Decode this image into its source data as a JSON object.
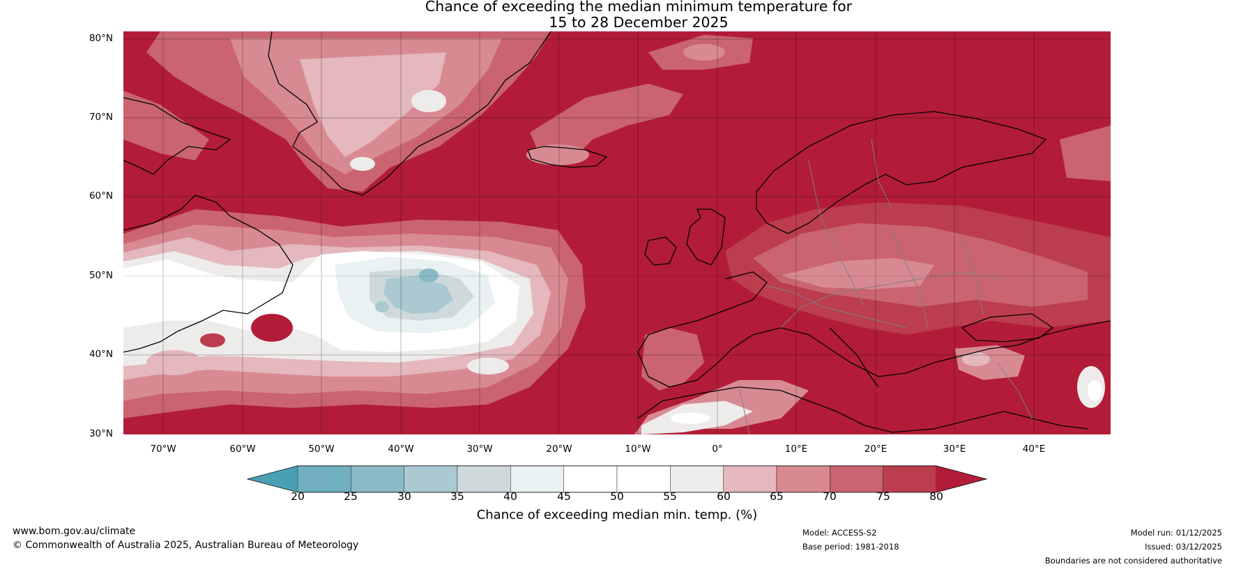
{
  "title": {
    "line1": "Chance of exceeding the median minimum temperature for",
    "line2": "15 to 28 December 2025"
  },
  "latitude_labels": [
    "80°N",
    "70°N",
    "60°N",
    "50°N",
    "40°N",
    "30°N"
  ],
  "longitude_labels": [
    "70°W",
    "60°W",
    "50°W",
    "40°W",
    "30°W",
    "20°W",
    "10°W",
    "0°",
    "10°E",
    "20°E",
    "30°E",
    "40°E"
  ],
  "colorbar": {
    "ticks": [
      "20",
      "25",
      "30",
      "35",
      "40",
      "45",
      "50",
      "55",
      "60",
      "65",
      "70",
      "75",
      "80"
    ],
    "colors": [
      "#49a0b4",
      "#70afbf",
      "#8ab9c6",
      "#aac9d1",
      "#cfd9dc",
      "#e9f1f2",
      "#ffffff",
      "#ffffff",
      "#eeeceb",
      "#e4b8bd",
      "#d88a92",
      "#c96470",
      "#bb3d4e",
      "#b21c38"
    ],
    "label": "Chance of exceeding median min. temp. (%)"
  },
  "footer": {
    "website": "www.bom.gov.au/climate",
    "copyright": "© Commonwealth of Australia 2025, Australian Bureau of Meteorology",
    "model": "Model: ACCESS-S2",
    "base_period": "Base period: 1981-2018",
    "model_run": "Model run: 01/12/2025",
    "issued": "Issued: 03/12/2025",
    "disclaimer": "Boundaries are not considered authoritative"
  }
}
